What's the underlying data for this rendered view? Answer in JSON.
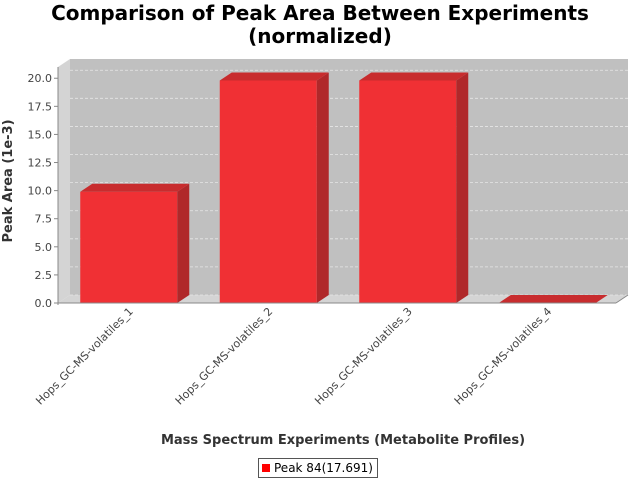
{
  "chart_data": {
    "type": "bar",
    "title": "Comparison of Peak Area Between Experiments",
    "subtitle": "(normalized)",
    "xlabel": "Mass Spectrum Experiments (Metabolite Profiles)",
    "ylabel": "Peak Area (1e-3)",
    "categories": [
      "Hops_GC-MS-volatiles_1",
      "Hops_GC-MS-volatiles_2",
      "Hops_GC-MS-volatiles_3",
      "Hops_GC-MS-volatiles_4"
    ],
    "series": [
      {
        "name": "Peak 84(17.691)",
        "values": [
          9.9,
          19.8,
          19.8,
          0.0
        ]
      }
    ],
    "ylim": [
      0,
      21
    ],
    "yticks": [
      0.0,
      2.5,
      5.0,
      7.5,
      10.0,
      12.5,
      15.0,
      17.5,
      20.0
    ],
    "yticklabels": [
      "0.0",
      "2.5",
      "5.0",
      "7.5",
      "10.0",
      "12.5",
      "15.0",
      "17.5",
      "20.0"
    ],
    "grid": true,
    "legend_position": "bottom",
    "colors": {
      "bar_front": "#f03034",
      "bar_side": "#b0282a",
      "bar_top": "#c82c2e",
      "plot_background": "#c0c0c0",
      "plot_wall": "#d4d4d4",
      "grid": "#e6e6e6",
      "legend_swatch": "#ff0000"
    }
  }
}
